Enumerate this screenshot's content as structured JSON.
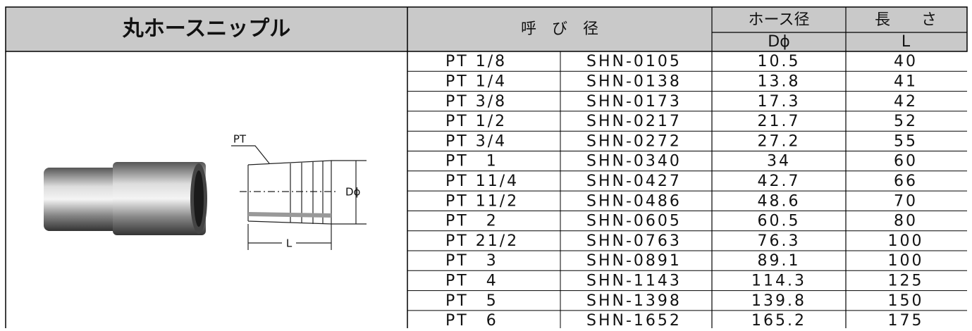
{
  "title": "丸ホースニップル",
  "figure": {
    "labels": [
      "PT",
      "Dϕ",
      "L"
    ]
  },
  "table": {
    "header": {
      "size": "呼　び　径",
      "diameter": "ホース径",
      "diameter_symbol": "Dϕ",
      "length": "長　　さ",
      "length_symbol": "L"
    },
    "rows": [
      [
        "PT 1/8",
        "SHN-0105",
        "10.5",
        "40"
      ],
      [
        "PT 1/4",
        "SHN-0138",
        "13.8",
        "41"
      ],
      [
        "PT 3/8",
        "SHN-0173",
        "17.3",
        "42"
      ],
      [
        "PT 1/2",
        "SHN-0217",
        "21.7",
        "52"
      ],
      [
        "PT 3/4",
        "SHN-0272",
        "27.2",
        "55"
      ],
      [
        "PT　1",
        "SHN-0340",
        "34",
        "60"
      ],
      [
        "PT 11/4",
        "SHN-0427",
        "42.7",
        "66"
      ],
      [
        "PT 11/2",
        "SHN-0486",
        "48.6",
        "70"
      ],
      [
        "PT　2",
        "SHN-0605",
        "60.5",
        "80"
      ],
      [
        "PT 21/2",
        "SHN-0763",
        "76.3",
        "100"
      ],
      [
        "PT　3",
        "SHN-0891",
        "89.1",
        "100"
      ],
      [
        "PT　4",
        "SHN-1143",
        "114.3",
        "125"
      ],
      [
        "PT　5",
        "SHN-1398",
        "139.8",
        "150"
      ],
      [
        "PT　6",
        "SHN-1652",
        "165.2",
        "175"
      ]
    ]
  }
}
